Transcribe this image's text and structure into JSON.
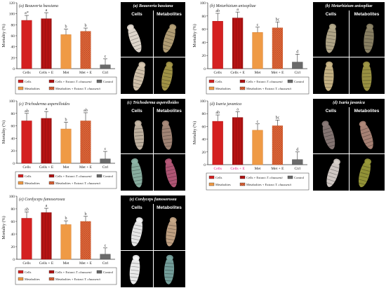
{
  "chart_data": [
    {
      "type": "bar",
      "title": "(a) Beauveria bassiana",
      "ylabel": "Mortality (%)",
      "ylim": [
        0,
        120
      ],
      "yticks": [
        "0",
        "20",
        "40",
        "60",
        "80",
        "100",
        "120"
      ],
      "categories": [
        "Cells",
        "Cells + E",
        "Met",
        "Met + E",
        "Ctrl"
      ],
      "values": [
        88,
        91,
        62,
        68,
        7
      ],
      "errors": [
        9,
        11,
        10,
        6,
        11
      ],
      "sig": [
        "a*",
        "a",
        "b",
        "b",
        "c"
      ],
      "legend": [
        "Cells",
        "Cells + Extract T. claussenii",
        "Control",
        "Metabolites",
        "Metabolites + Extract T. claussenii"
      ]
    },
    {
      "type": "bar",
      "title": "(b) Metarhizium anisopliae",
      "ylabel": "Mortality (%)",
      "ylim": [
        0,
        100
      ],
      "yticks": [
        "0",
        "20",
        "40",
        "60",
        "80",
        "100"
      ],
      "categories": [
        "Cells",
        "Cells + E",
        "Met",
        "Met + E",
        "Ctrl"
      ],
      "values": [
        72,
        77,
        55,
        62,
        10
      ],
      "errors": [
        12,
        9,
        8,
        9,
        12
      ],
      "sig": [
        "ab",
        "a",
        "c",
        "bc",
        "d"
      ],
      "legend": [
        "Cells",
        "Cells + Extract T. claussenii",
        "Control",
        "Metabolites",
        "Metabolites + Extract T. claussenii"
      ]
    },
    {
      "type": "bar",
      "title": "(c) Trichoderma asperelloides",
      "ylabel": "Mortality (%)",
      "ylim": [
        0,
        100
      ],
      "yticks": [
        "0",
        "20",
        "40",
        "60",
        "80",
        "100"
      ],
      "categories": [
        "Cells",
        "Cells + E",
        "Met",
        "Met + E",
        "Ctrl"
      ],
      "values": [
        68,
        72,
        55,
        68,
        7
      ],
      "errors": [
        12,
        11,
        11,
        13,
        12
      ],
      "sig": [
        "ab",
        "a",
        "b",
        "ab",
        "c"
      ],
      "legend": [
        "Cells",
        "Cells + Extract T. claussenii",
        "Control",
        "Metabolites",
        "Metabolites + Extract T. claussenii"
      ]
    },
    {
      "type": "bar",
      "title": "(d) Isaria javanica",
      "ylabel": "Mortality (%)",
      "ylim": [
        0,
        100
      ],
      "yticks": [
        "0",
        "20",
        "40",
        "60",
        "80",
        "100"
      ],
      "categories": [
        "Cells",
        "Cells + E",
        "Met",
        "Met + E",
        "Ctrl"
      ],
      "values": [
        68,
        74,
        54,
        61,
        8
      ],
      "errors": [
        10,
        9,
        10,
        9,
        12
      ],
      "sig": [
        "ab",
        "a",
        "c",
        "bc",
        "d"
      ],
      "legend": [
        "Cells",
        "Cells + Extract T. claussenii",
        "Control",
        "Metabolites",
        "Metabolites + Extract T. claussenii"
      ]
    },
    {
      "type": "bar",
      "title": "(e) Cordyceps fumosorosea",
      "ylabel": "Mortality (%)",
      "ylim": [
        0,
        100
      ],
      "yticks": [
        "0",
        "20",
        "40",
        "60",
        "80",
        "100"
      ],
      "categories": [
        "Cells",
        "Cells + E",
        "Met",
        "Met + E",
        "Ctrl"
      ],
      "values": [
        65,
        74,
        55,
        60,
        8
      ],
      "errors": [
        10,
        7,
        6,
        8,
        10
      ],
      "sig": [
        "ab",
        "a",
        "b",
        "b",
        "c"
      ],
      "legend": [
        "Cells",
        "Cells + Extract T. claussenii",
        "Control",
        "Metabolites",
        "Metabolites + Extract T. claussenii"
      ]
    }
  ],
  "photos": [
    {
      "title": "(a) Beauveria bassiana",
      "col1": "Cells",
      "col2": "Metabolites"
    },
    {
      "title": "(b) Metarhizium anisopliae",
      "col1": "Cells",
      "col2": "Metabolites"
    },
    {
      "title": "(c) Trichoderma asperelloides",
      "col1": "Cells",
      "col2": "Metabolites"
    },
    {
      "title": "(d) Isaria javanica",
      "col1": "Cells",
      "col2": "Metabolites"
    },
    {
      "title": "(e) Cordyceps fumosorosea",
      "col1": "Cells",
      "col2": "Metabolites"
    }
  ],
  "colors": {
    "cells": "#d42020",
    "cells_e": "#b51313",
    "met": "#ef9a45",
    "met_e": "#e9723a",
    "ctrl": "#6a6a6a",
    "sig_letter": "#333333",
    "cat_label_red": "#e0208a"
  }
}
